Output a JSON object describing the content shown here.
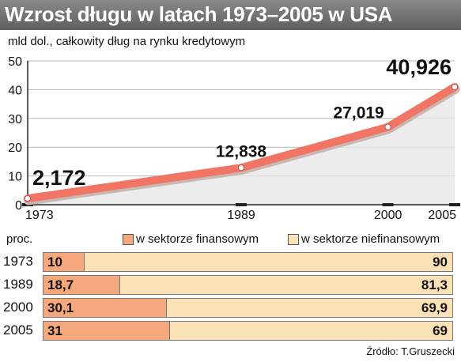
{
  "title": "Wzrost długu w latach 1973–2005 w USA",
  "subtitle": "mld dol., całkowity dług na rynku kredytowym",
  "colors": {
    "header": "#6f6f6f",
    "line": "#f07565",
    "area": "#e5e5e5",
    "financial": "#f4a87c",
    "nonfinancial": "#fbe1b6"
  },
  "chart_data": [
    {
      "type": "line",
      "x": [
        1973,
        1989,
        2000,
        2005
      ],
      "x_tick_labels": [
        "1973",
        "1989",
        "2000",
        "2005"
      ],
      "values": [
        2.172,
        12.838,
        27.019,
        40.926
      ],
      "data_labels": [
        "2,172",
        "12,838",
        "27,019",
        "40,926"
      ],
      "yticks": [
        "0",
        "10",
        "20",
        "30",
        "40",
        "50"
      ],
      "ylim": [
        0,
        50
      ],
      "xlim": [
        1973,
        2005
      ],
      "grid": true
    },
    {
      "type": "bar",
      "ylabel": "proc.",
      "categories": [
        "1973",
        "1989",
        "2000",
        "2005"
      ],
      "series": [
        {
          "name": "w sektorze finansowym",
          "values": [
            10,
            18.7,
            30.1,
            31
          ],
          "labels": [
            "10",
            "18,7",
            "30,1",
            "31"
          ]
        },
        {
          "name": "w sektorze niefinansowym",
          "values": [
            90,
            81.3,
            69.9,
            69
          ],
          "labels": [
            "90",
            "81,3",
            "69,9",
            "69"
          ]
        }
      ]
    }
  ],
  "source": "Źródło: T.Gruszecki"
}
